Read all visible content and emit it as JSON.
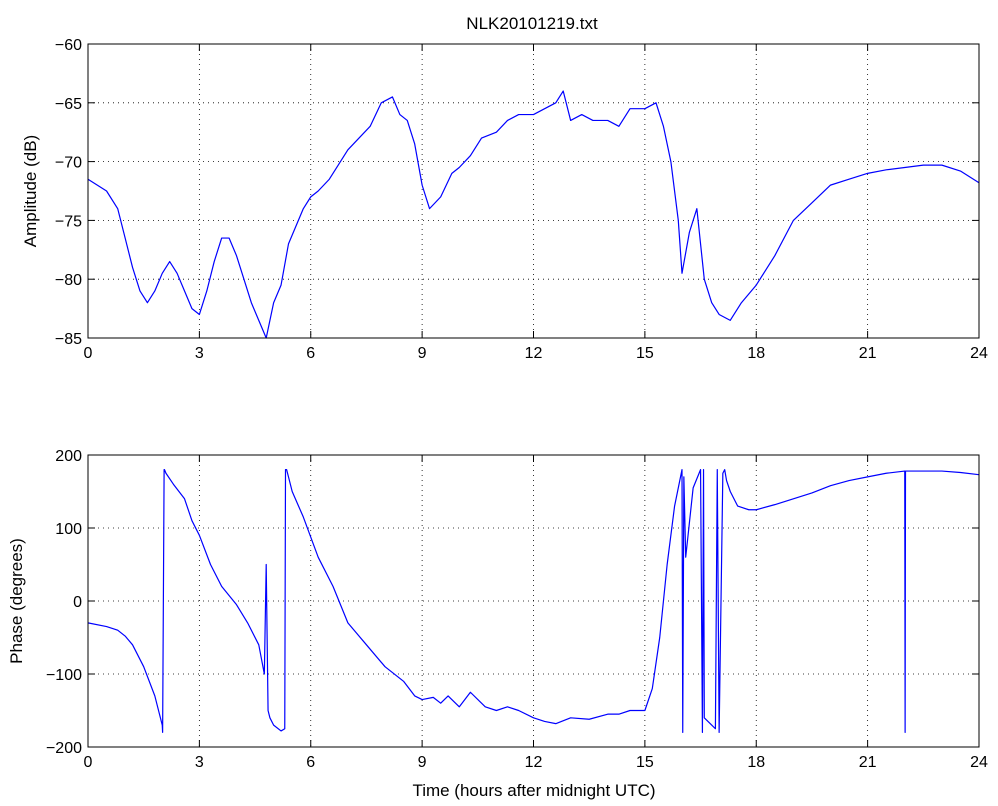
{
  "chart_data": [
    {
      "type": "line",
      "title": "NLK20101219.txt",
      "xlabel": "",
      "ylabel": "Amplitude (dB)",
      "xlim": [
        0,
        24
      ],
      "ylim": [
        -85,
        -60
      ],
      "xticks": [
        0,
        3,
        6,
        9,
        12,
        15,
        18,
        21,
        24
      ],
      "yticks": [
        -85,
        -80,
        -75,
        -70,
        -65,
        -60
      ],
      "grid": true,
      "series": [
        {
          "color": "#0000ff",
          "x": [
            0,
            0.5,
            0.8,
            1.0,
            1.2,
            1.4,
            1.6,
            1.8,
            2.0,
            2.2,
            2.4,
            2.6,
            2.8,
            3.0,
            3.2,
            3.4,
            3.6,
            3.8,
            4.0,
            4.2,
            4.4,
            4.6,
            4.8,
            5.0,
            5.2,
            5.4,
            5.6,
            5.8,
            6.0,
            6.2,
            6.5,
            7.0,
            7.3,
            7.6,
            7.9,
            8.2,
            8.4,
            8.6,
            8.8,
            9.0,
            9.2,
            9.5,
            9.8,
            10.0,
            10.3,
            10.6,
            11.0,
            11.3,
            11.6,
            12.0,
            12.3,
            12.6,
            12.8,
            13.0,
            13.3,
            13.6,
            14.0,
            14.3,
            14.6,
            15.0,
            15.3,
            15.5,
            15.7,
            15.9,
            16.0,
            16.2,
            16.4,
            16.6,
            16.8,
            17.0,
            17.3,
            17.6,
            18.0,
            18.5,
            19.0,
            19.5,
            20.0,
            20.5,
            21.0,
            21.5,
            22.0,
            22.5,
            23.0,
            23.5,
            24.0
          ],
          "y": [
            -71.5,
            -72.5,
            -74,
            -76.5,
            -79,
            -81,
            -82,
            -81,
            -79.5,
            -78.5,
            -79.5,
            -81,
            -82.5,
            -83,
            -81,
            -78.5,
            -76.5,
            -76.5,
            -78,
            -80,
            -82,
            -83.5,
            -85,
            -82,
            -80.5,
            -77,
            -75.5,
            -74,
            -73,
            -72.5,
            -71.5,
            -69,
            -68,
            -67,
            -65,
            -64.5,
            -66,
            -66.5,
            -68.5,
            -72,
            -74,
            -73,
            -71,
            -70.5,
            -69.5,
            -68,
            -67.5,
            -66.5,
            -66,
            -66,
            -65.5,
            -65,
            -64,
            -66.5,
            -66,
            -66.5,
            -66.5,
            -67,
            -65.5,
            -65.5,
            -65,
            -67,
            -70,
            -75,
            -79.5,
            -76,
            -74,
            -80,
            -82,
            -83,
            -83.5,
            -82,
            -80.5,
            -78,
            -75,
            -73.5,
            -72,
            -71.5,
            -71,
            -70.7,
            -70.5,
            -70.3,
            -70.3,
            -70.8,
            -71.8
          ]
        }
      ]
    },
    {
      "type": "line",
      "title": "",
      "xlabel": "Time (hours after midnight UTC)",
      "ylabel": "Phase (degrees)",
      "xlim": [
        0,
        24
      ],
      "ylim": [
        -200,
        200
      ],
      "xticks": [
        0,
        3,
        6,
        9,
        12,
        15,
        18,
        21,
        24
      ],
      "yticks": [
        -200,
        -100,
        0,
        100,
        200
      ],
      "grid": true,
      "series": [
        {
          "color": "#0000ff",
          "x": [
            0,
            0.5,
            0.8,
            1.0,
            1.2,
            1.5,
            1.8,
            2.0,
            2.01,
            2.05,
            2.06,
            2.1,
            2.3,
            2.6,
            2.8,
            3.0,
            3.3,
            3.6,
            4.0,
            4.3,
            4.6,
            4.75,
            4.8,
            4.85,
            4.9,
            5.0,
            5.2,
            5.3,
            5.32,
            5.35,
            5.4,
            5.5,
            5.8,
            6.2,
            6.6,
            7.0,
            7.5,
            8.0,
            8.5,
            8.8,
            9.0,
            9.3,
            9.5,
            9.7,
            10.0,
            10.3,
            10.7,
            11.0,
            11.3,
            11.6,
            12.0,
            12.3,
            12.6,
            13.0,
            13.5,
            14.0,
            14.3,
            14.6,
            15.0,
            15.2,
            15.4,
            15.6,
            15.8,
            16.0,
            16.02,
            16.05,
            16.1,
            16.3,
            16.5,
            16.55,
            16.58,
            16.6,
            16.8,
            16.9,
            16.95,
            17.0,
            17.1,
            17.15,
            17.2,
            17.3,
            17.5,
            17.8,
            18.0,
            18.5,
            19.0,
            19.5,
            20.0,
            20.5,
            21.0,
            21.5,
            22.0,
            22.01,
            22.02,
            22.03,
            22.1,
            22.5,
            23.0,
            23.5,
            24.0
          ],
          "y": [
            -30,
            -35,
            -40,
            -48,
            -60,
            -90,
            -130,
            -170,
            -180,
            180,
            180,
            175,
            160,
            140,
            110,
            90,
            50,
            20,
            -5,
            -30,
            -60,
            -100,
            50,
            -150,
            -160,
            -170,
            -178,
            -175,
            180,
            180,
            170,
            150,
            115,
            60,
            20,
            -30,
            -60,
            -90,
            -110,
            -130,
            -135,
            -132,
            -140,
            -130,
            -145,
            -125,
            -145,
            -150,
            -145,
            -150,
            -160,
            -165,
            -168,
            -160,
            -162,
            -155,
            -155,
            -150,
            -150,
            -120,
            -50,
            50,
            130,
            180,
            -180,
            170,
            60,
            155,
            180,
            -180,
            180,
            -160,
            -170,
            -175,
            180,
            -180,
            175,
            180,
            165,
            150,
            130,
            125,
            125,
            132,
            140,
            148,
            158,
            165,
            170,
            175,
            178,
            -180,
            178,
            178,
            178,
            178,
            178,
            176,
            173
          ]
        }
      ]
    }
  ]
}
